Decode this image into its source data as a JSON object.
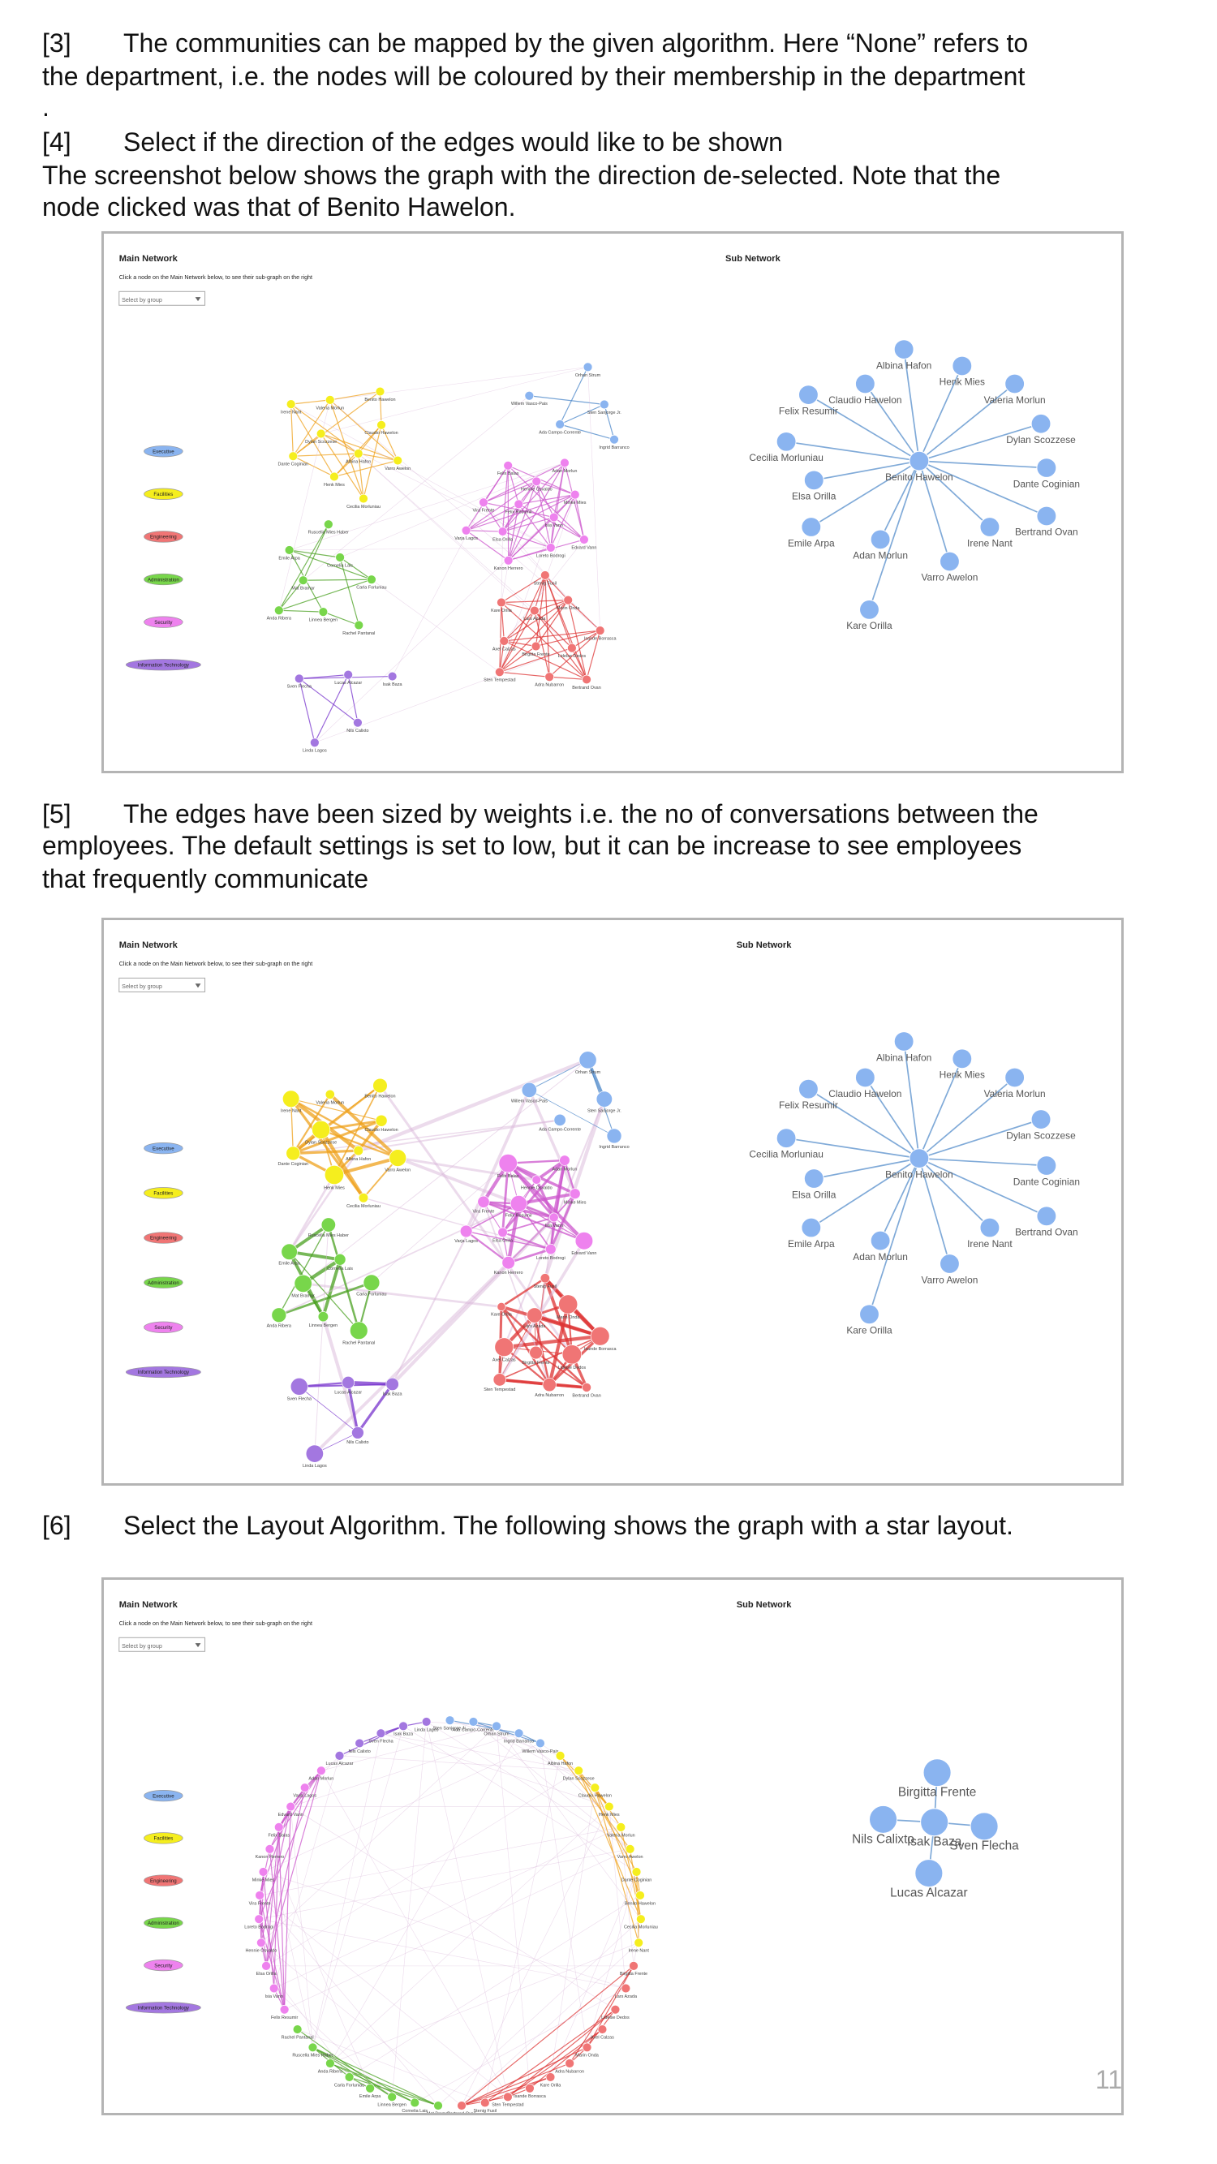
{
  "blocks": [
    {
      "marker": "[3]",
      "lines": [
        "The communities can be mapped by the given algorithm. Here “None” refers to",
        "the department, i.e. the nodes will be coloured by their membership in the department",
        "."
      ]
    },
    {
      "marker": "[4]",
      "lines": [
        "Select if the direction of the edges would like to be shown"
      ]
    },
    {
      "lines": [
        "The screenshot below shows the graph with the direction de-selected. Note that the",
        "node clicked was that of Benito Hawelon."
      ]
    },
    {
      "marker": "[5]",
      "lines": [
        "The edges have been sized by weights i.e. the no of conversations between the",
        "employees. The default settings is set to low, but it can be increase to see employees",
        "that frequently communicate"
      ]
    },
    {
      "marker": "[6]",
      "lines": [
        "Select the Layout Algorithm. The following shows the graph with a star layout."
      ]
    }
  ],
  "page_number": "11",
  "network": {
    "main_title": "Main Network",
    "instruction": "Click a node on the Main Network below, to see their sub-graph on the right",
    "select_placeholder": "Select by group",
    "sub_title": "Sub Network",
    "groups": [
      {
        "name": "Executive",
        "color": "#8ab4f0",
        "edge_color": "#4a86c8",
        "nodes": [
          "Sten Sanjorge Jr.",
          "Ada Campo-Corrente",
          "Orhan Strum",
          "Ingrid Barranco",
          "Willem Vasco-Pais"
        ]
      },
      {
        "name": "Facilities",
        "color": "#f5ee1e",
        "edge_color": "#efa21c",
        "nodes": [
          "Albina Hafon",
          "Dylan Scozzese",
          "Claudio Hawelon",
          "Henk Mies",
          "Valeria Morlun",
          "Varro Awelon",
          "Dante Coginian",
          "Benito Hawelon",
          "Cecilia Morluniau",
          "Irene Nant"
        ]
      },
      {
        "name": "Engineering",
        "color": "#f07575",
        "edge_color": "#dd3333",
        "nodes": [
          "Birgitta Frente",
          "Lars Azada",
          "Lidelse Dedos",
          "Axel Calzas",
          "Marin Onda",
          "Adra Nubarron",
          "Kare Orilla",
          "Isande Borrasca",
          "Sten Tempestad",
          "Stenig Fusil",
          "Bertrand Ovan"
        ]
      },
      {
        "name": "Administration",
        "color": "#78d64b",
        "edge_color": "#4aa020",
        "nodes": [
          "Mat Bramar",
          "Cornelia Lais",
          "Linnea Bergen",
          "Emile Arpa",
          "Carla Forluniau",
          "Anda Ribera",
          "Ruscella Mies Haber",
          "Rachel Pantanal"
        ]
      },
      {
        "name": "Security",
        "color": "#ee82ee",
        "edge_color": "#cc55cc",
        "nodes": [
          "Felix Resumir",
          "Isia Vann",
          "Elsa Orilla",
          "Hennie Osvaldo",
          "Loreto Bodrogi",
          "Vira Frente",
          "Minke Mies",
          "Kanon Herrero",
          "Felix Balas",
          "Edvard Vann",
          "Varja Lagos",
          "Adan Morlun"
        ]
      },
      {
        "name": "Information Technology",
        "color": "#a377e0",
        "edge_color": "#7733cc",
        "nodes": [
          "Lucas Alcazar",
          "Nils Calixto",
          "Sven Flecha",
          "Isak Baza",
          "Linda Lagos"
        ]
      }
    ]
  },
  "screenshots": [
    {
      "layout": "force",
      "edges_sized": false,
      "sub_network": {
        "color": "#8ab4f0",
        "edge_color": "#4a86c8",
        "center": "Benito Hawelon",
        "nodes": [
          "Albina Hafon",
          "Henk Mies",
          "Valeria Morlun",
          "Claudio Hawelon",
          "Felix Resumir",
          "Dylan Scozzese",
          "Cecilia Morluniau",
          "Dante Coginian",
          "Elsa Orilla",
          "Bertrand Ovan",
          "Emile Arpa",
          "Irene Nant",
          "Adan Morlun",
          "Varro Awelon",
          "Kare Orilla"
        ]
      }
    },
    {
      "layout": "force",
      "edges_sized": true,
      "sub_network": {
        "color": "#8ab4f0",
        "edge_color": "#4a86c8",
        "center": "Benito Hawelon",
        "nodes": [
          "Albina Hafon",
          "Henk Mies",
          "Valeria Morlun",
          "Claudio Hawelon",
          "Felix Resumir",
          "Dylan Scozzese",
          "Cecilia Morluniau",
          "Dante Coginian",
          "Elsa Orilla",
          "Bertrand Ovan",
          "Emile Arpa",
          "Irene Nant",
          "Adan Morlun",
          "Varro Awelon",
          "Kare Orilla"
        ]
      }
    },
    {
      "layout": "circular",
      "edges_sized": false,
      "sub_network": {
        "color": "#8ab4f0",
        "edge_color": "#4a86c8",
        "center": "Isak Baza",
        "nodes": [
          "Birgitta Frente",
          "Nils Calixto",
          "Sven Flecha",
          "Lucas Alcazar"
        ]
      }
    }
  ]
}
